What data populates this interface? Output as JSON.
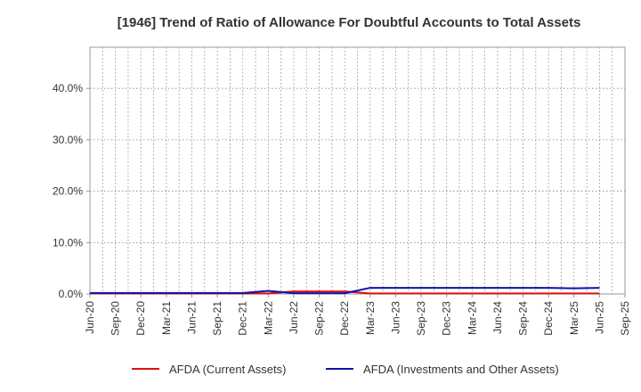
{
  "chart_data": {
    "type": "line",
    "title": "[1946]  Trend of Ratio of Allowance For Doubtful Accounts to Total Assets",
    "xlabel": "",
    "ylabel": "",
    "x": [
      "Jun-20",
      "Sep-20",
      "Dec-20",
      "Mar-21",
      "Jun-21",
      "Sep-21",
      "Dec-21",
      "Mar-22",
      "Jun-22",
      "Sep-22",
      "Dec-22",
      "Mar-23",
      "Jun-23",
      "Sep-23",
      "Dec-23",
      "Mar-24",
      "Jun-24",
      "Sep-24",
      "Dec-24",
      "Mar-25",
      "Jun-25",
      "Sep-25"
    ],
    "yticks": [
      0,
      10,
      20,
      30,
      40
    ],
    "ytick_labels": [
      "0.0%",
      "10.0%",
      "20.0%",
      "30.0%",
      "40.0%"
    ],
    "ylim": [
      0,
      48
    ],
    "grid": true,
    "legend_position": "bottom",
    "series": [
      {
        "name": "AFDA (Current Assets)",
        "color": "#dd1111",
        "values": [
          0.1,
          0.1,
          0.1,
          0.1,
          0.1,
          0.1,
          0.1,
          0.1,
          0.5,
          0.5,
          0.5,
          0.1,
          0.1,
          0.1,
          0.1,
          0.1,
          0.1,
          0.1,
          0.1,
          0.1,
          0.1,
          null
        ]
      },
      {
        "name": "AFDA (Investments and Other Assets)",
        "color": "#1111aa",
        "values": [
          0.2,
          0.2,
          0.2,
          0.2,
          0.2,
          0.2,
          0.2,
          0.6,
          0.15,
          0.15,
          0.15,
          1.2,
          1.2,
          1.2,
          1.2,
          1.2,
          1.2,
          1.2,
          1.2,
          1.1,
          1.2,
          null
        ]
      }
    ]
  }
}
